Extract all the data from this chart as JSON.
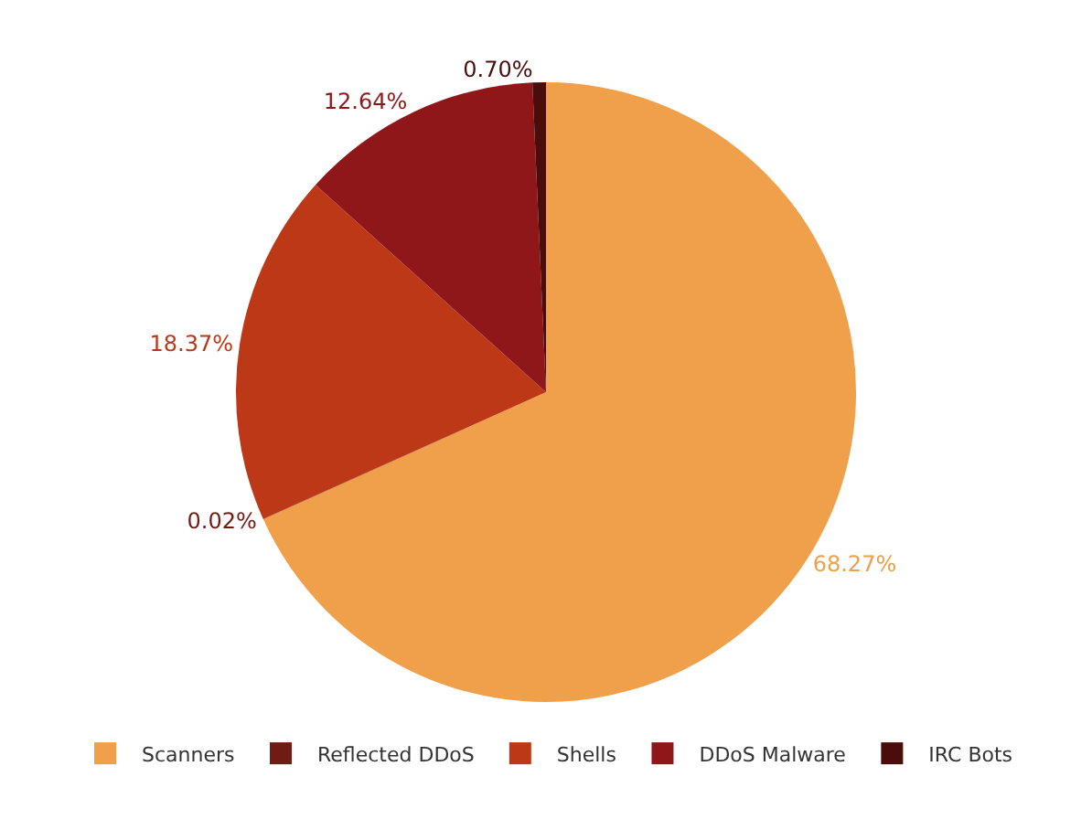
{
  "chart_data": {
    "type": "pie",
    "categories": [
      "Scanners",
      "Reflected DDoS",
      "Shells",
      "DDoS Malware",
      "IRC Bots"
    ],
    "values": [
      68.27,
      0.02,
      18.37,
      12.64,
      0.7
    ],
    "value_labels": [
      "68.27%",
      "0.02%",
      "18.37%",
      "12.64%",
      "0.70%"
    ],
    "colors": [
      "#f0a04b",
      "#6e1c14",
      "#bc3817",
      "#8f1719",
      "#4a0d09"
    ],
    "legend": "bottom"
  }
}
